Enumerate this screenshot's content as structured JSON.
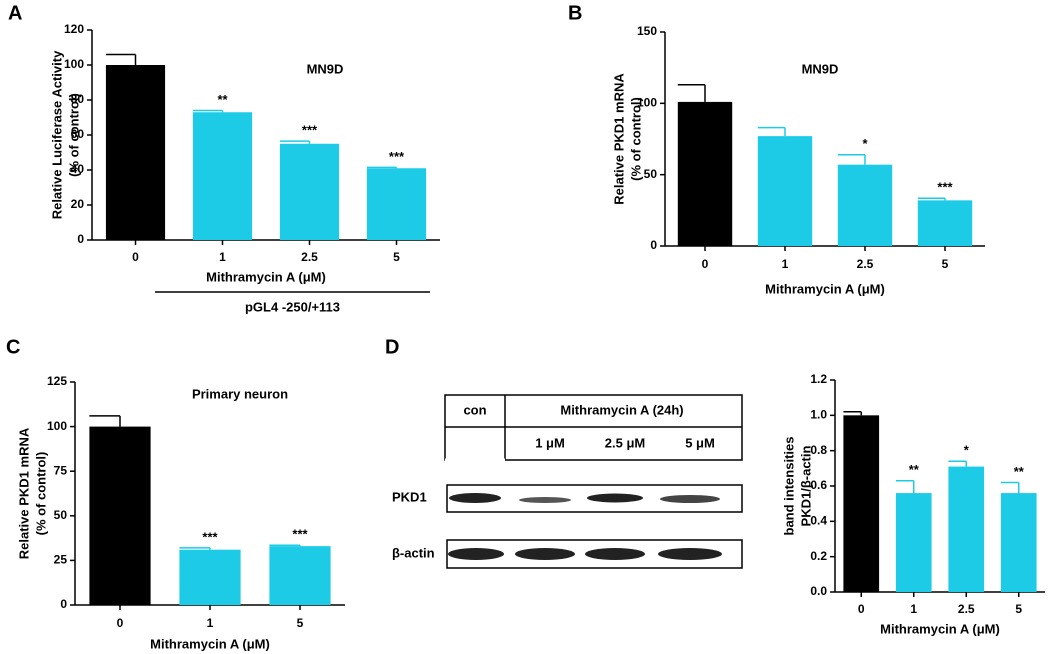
{
  "chart_data": [
    {
      "type": "bar",
      "panel": "A",
      "title": "MN9D",
      "xlabel": "Mithramycin A (μM)",
      "ylabel": [
        "Relative Luciferase Activity",
        "(% of control)"
      ],
      "group_label": "pGL4 -250/+113",
      "categories": [
        "0",
        "1",
        "2.5",
        "5"
      ],
      "values": [
        100,
        73,
        55,
        41
      ],
      "errors": [
        6,
        1,
        1.5,
        0.5
      ],
      "significance": [
        null,
        "**",
        "***",
        "***"
      ],
      "colors": [
        "#000000",
        "#1ecbe6",
        "#1ecbe6",
        "#1ecbe6"
      ],
      "ylim": [
        0,
        120
      ],
      "yticks": [
        0,
        20,
        40,
        60,
        80,
        100,
        120
      ]
    },
    {
      "type": "bar",
      "panel": "B",
      "title": "MN9D",
      "xlabel": "Mithramycin A (μM)",
      "ylabel": [
        "Relative PKD1 mRNA",
        "(% of control)"
      ],
      "categories": [
        "0",
        "1",
        "2.5",
        "5"
      ],
      "values": [
        101,
        77,
        57,
        32
      ],
      "errors": [
        12,
        6,
        7,
        1.5
      ],
      "significance": [
        null,
        null,
        "*",
        "***"
      ],
      "colors": [
        "#000000",
        "#1ecbe6",
        "#1ecbe6",
        "#1ecbe6"
      ],
      "ylim": [
        0,
        150
      ],
      "yticks": [
        0,
        50,
        100,
        150
      ]
    },
    {
      "type": "bar",
      "panel": "C",
      "title": "Primary neuron",
      "xlabel": "Mithramycin A (μM)",
      "ylabel": [
        "Relative PKD1 mRNA",
        "(% of control)"
      ],
      "categories": [
        "0",
        "1",
        "5"
      ],
      "values": [
        100,
        31,
        33
      ],
      "errors": [
        6,
        1,
        0.5
      ],
      "significance": [
        null,
        "***",
        "***"
      ],
      "colors": [
        "#000000",
        "#1ecbe6",
        "#1ecbe6"
      ],
      "ylim": [
        0,
        125
      ],
      "yticks": [
        0,
        25,
        50,
        75,
        100,
        125
      ]
    },
    {
      "type": "bar",
      "xlabel": "Mithramycin A (μM)",
      "ylabel": [
        "band intensities",
        "PKD1/β-actin"
      ],
      "categories": [
        "0",
        "1",
        "2.5",
        "5"
      ],
      "values": [
        1.0,
        0.56,
        0.71,
        0.56
      ],
      "errors": [
        0.02,
        0.07,
        0.03,
        0.06
      ],
      "significance": [
        null,
        "**",
        "*",
        "**"
      ],
      "colors": [
        "#000000",
        "#1ecbe6",
        "#1ecbe6",
        "#1ecbe6"
      ],
      "ylim": [
        0,
        1.2
      ],
      "yticks": [
        {
          "value": 0,
          "label": "0.0"
        },
        0.2,
        0.4,
        0.6,
        0.8,
        {
          "value": 1,
          "label": "1.0"
        },
        1.2
      ]
    }
  ],
  "blot": {
    "panel": "D",
    "header": [
      "con",
      "Mithramycin A (24h)"
    ],
    "doses": [
      "1 μM",
      "2.5 μM",
      "5 μM"
    ],
    "rows": [
      "PKD1",
      "β-actin"
    ]
  }
}
